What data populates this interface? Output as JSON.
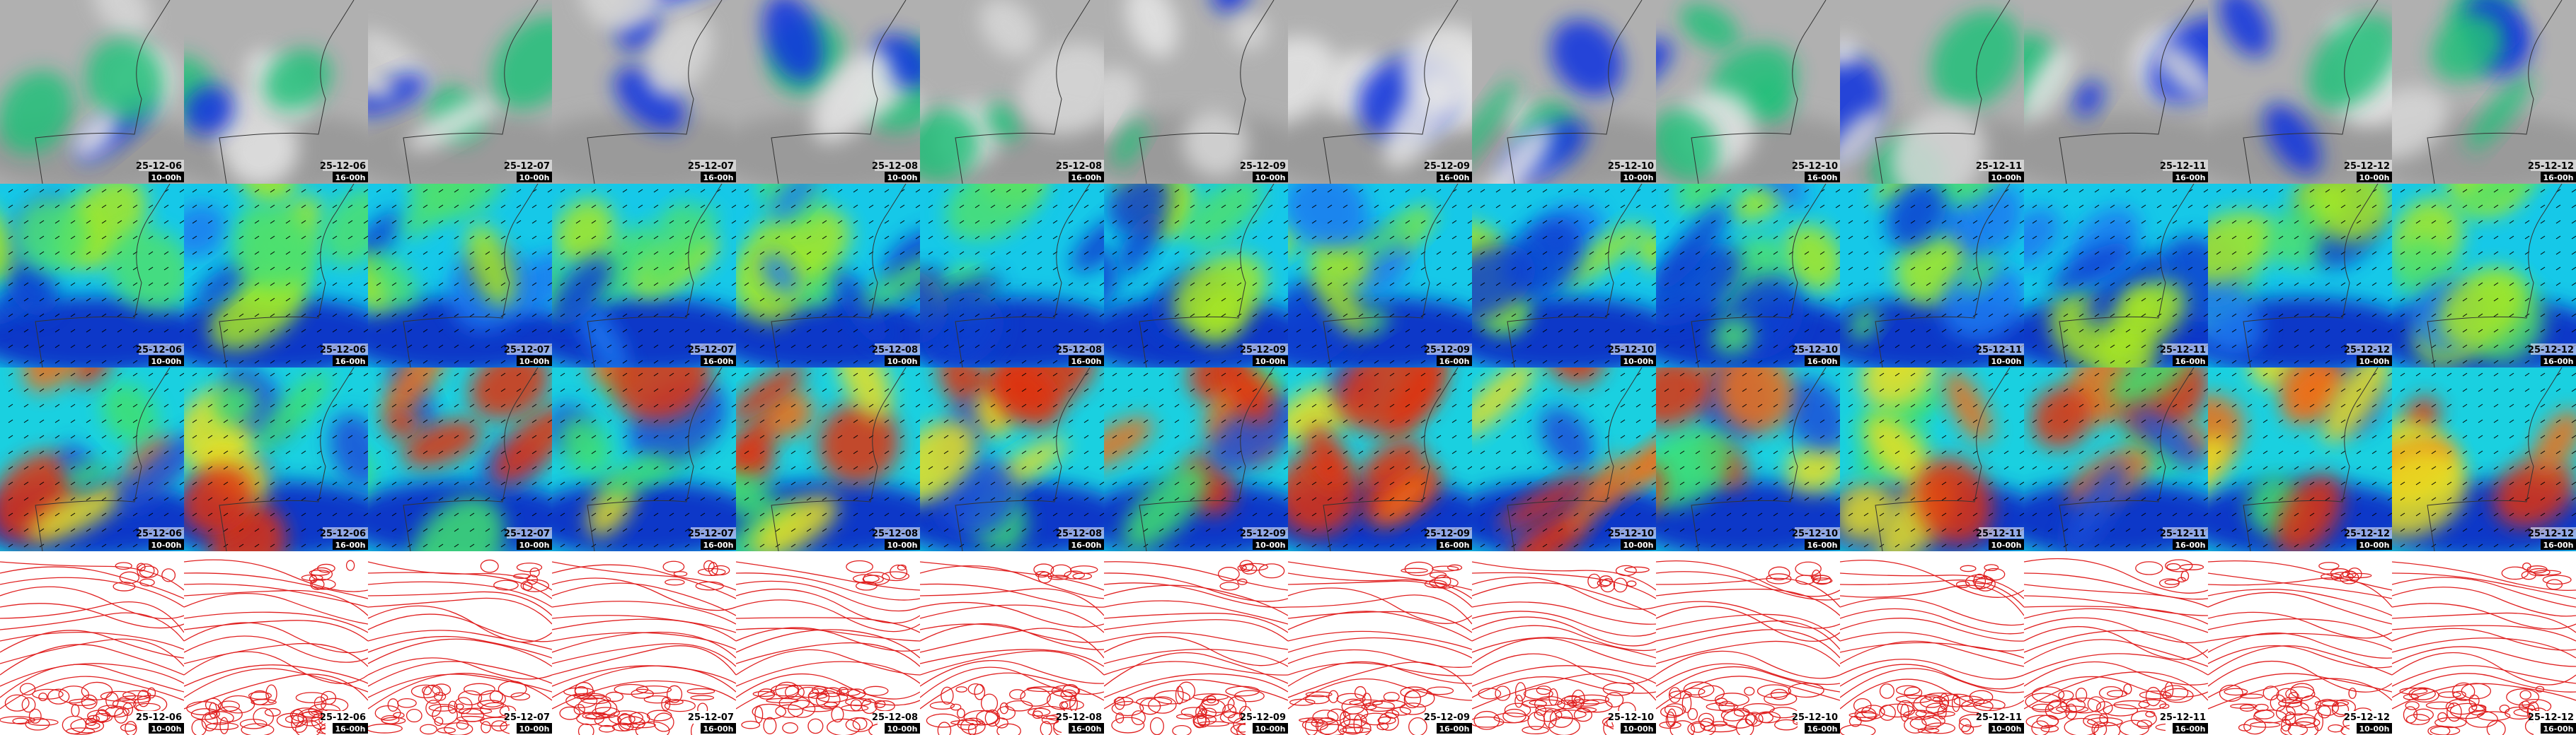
{
  "columns": [
    {
      "date": "25-12-06",
      "time": "10-00h"
    },
    {
      "date": "25-12-06",
      "time": "16-00h"
    },
    {
      "date": "25-12-07",
      "time": "10-00h"
    },
    {
      "date": "25-12-07",
      "time": "16-00h"
    },
    {
      "date": "25-12-08",
      "time": "10-00h"
    },
    {
      "date": "25-12-08",
      "time": "16-00h"
    },
    {
      "date": "25-12-09",
      "time": "10-00h"
    },
    {
      "date": "25-12-09",
      "time": "16-00h"
    },
    {
      "date": "25-12-10",
      "time": "10-00h"
    },
    {
      "date": "25-12-10",
      "time": "16-00h"
    },
    {
      "date": "25-12-11",
      "time": "10-00h"
    },
    {
      "date": "25-12-11",
      "time": "16-00h"
    },
    {
      "date": "25-12-12",
      "time": "10-00h"
    },
    {
      "date": "25-12-12",
      "time": "16-00h"
    }
  ]
}
